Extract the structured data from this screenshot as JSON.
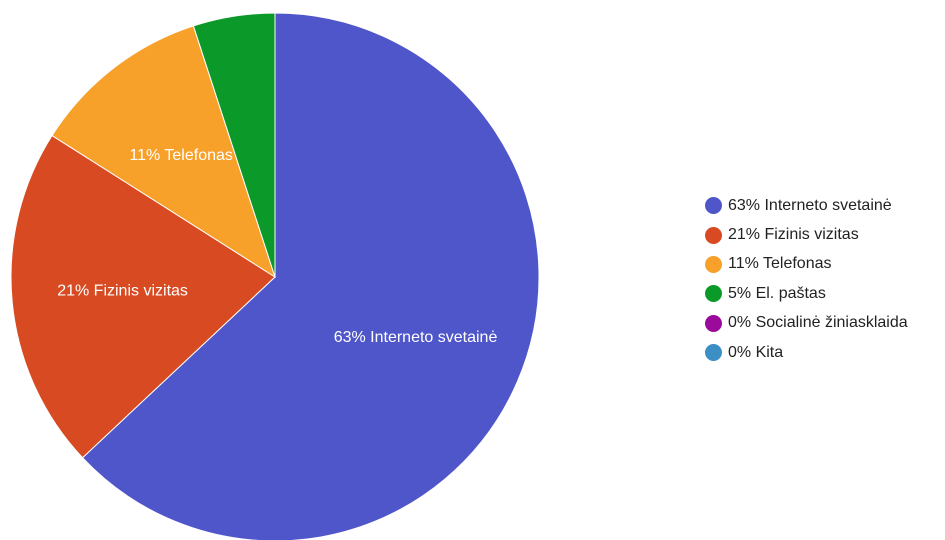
{
  "chart_data": {
    "type": "pie",
    "title": "",
    "slices": [
      {
        "label": "Interneto svetainė",
        "value": 63,
        "display": "63% Interneto svetainė",
        "color": "#4f56c9",
        "show_label": true
      },
      {
        "label": "Fizinis vizitas",
        "value": 21,
        "display": "21% Fizinis vizitas",
        "color": "#d84a21",
        "show_label": true
      },
      {
        "label": "Telefonas",
        "value": 11,
        "display": "11% Telefonas",
        "color": "#f7a12b",
        "show_label": true
      },
      {
        "label": "El. paštas",
        "value": 5,
        "display": "5% El. paštas",
        "color": "#0b9a2a",
        "show_label": false
      },
      {
        "label": "Socialinė žiniasklaida",
        "value": 0,
        "display": "0% Socialinė žiniasklaida",
        "color": "#9c0a9c",
        "show_label": false
      },
      {
        "label": "Kita",
        "value": 0,
        "display": "0% Kita",
        "color": "#3b8fc4",
        "show_label": false
      }
    ],
    "legend_position": "right"
  }
}
